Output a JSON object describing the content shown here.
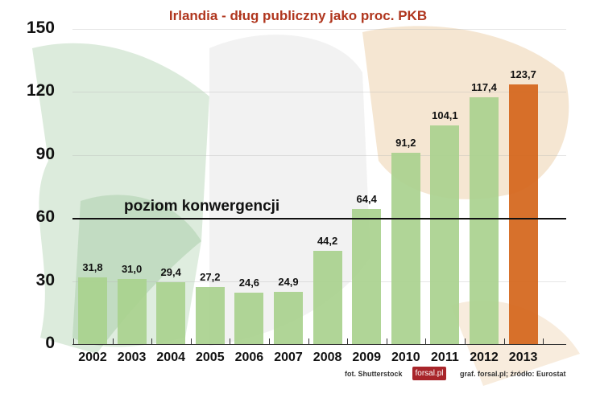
{
  "chart_data": {
    "type": "bar",
    "title": "Irlandia - dług publiczny jako proc. PKB",
    "xlabel": "",
    "ylabel": "",
    "ylim": [
      0,
      150
    ],
    "yticks": [
      "0",
      "30",
      "60",
      "90",
      "120",
      "150"
    ],
    "grid": true,
    "categories": [
      "2002",
      "2003",
      "2004",
      "2005",
      "2006",
      "2007",
      "2008",
      "2009",
      "2010",
      "2011",
      "2012",
      "2013"
    ],
    "values": [
      31.8,
      31.0,
      29.4,
      27.2,
      24.6,
      24.9,
      44.2,
      64.4,
      91.2,
      104.1,
      117.4,
      123.7
    ],
    "value_labels": [
      "31,8",
      "31,0",
      "29,4",
      "27,2",
      "24,6",
      "24,9",
      "44,2",
      "64,4",
      "91,2",
      "104,1",
      "117,4",
      "123,7"
    ],
    "bar_colors": [
      "#a9d18e",
      "#a9d18e",
      "#a9d18e",
      "#a9d18e",
      "#a9d18e",
      "#a9d18e",
      "#a9d18e",
      "#a9d18e",
      "#a9d18e",
      "#a9d18e",
      "#a9d18e",
      "#d4651a"
    ],
    "reference_line": {
      "value": 60,
      "label": "poziom konwergencji"
    },
    "legend": null
  },
  "credits": {
    "photo": "fot. Shutterstock",
    "logo": "forsal.pl",
    "source": "graf. forsal.pl;  źródło: Eurostat"
  }
}
